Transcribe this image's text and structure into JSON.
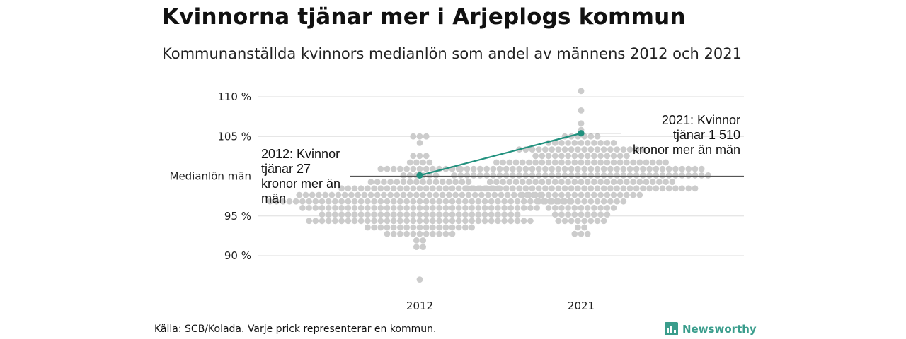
{
  "title": "Kvinnorna tjänar mer i Arjeplogs kommun",
  "subtitle": "Kommunanställda kvinnors medianlön som andel av männens 2012 och 2021",
  "source": "Källa: SCB/Kolada. Varje prick representerar en kommun.",
  "brand": {
    "name": "Newsworthy",
    "icon": "newsworthy-logo-icon",
    "color": "#3a9d8c"
  },
  "colors": {
    "dots": "#cccccc",
    "highlight": "#21917e",
    "grid": "#dddddd",
    "reference": "#555555"
  },
  "chart_data": {
    "type": "scatter",
    "subtype": "beeswarm",
    "categories": [
      "2012",
      "2021"
    ],
    "y_unit": "%",
    "ylim": [
      86,
      112
    ],
    "yticks": [
      {
        "value": 110,
        "label": "110 %"
      },
      {
        "value": 105,
        "label": "105 %"
      },
      {
        "value": 100,
        "label": "Medianlön män"
      },
      {
        "value": 95,
        "label": "95 %"
      },
      {
        "value": 90,
        "label": "90 %"
      }
    ],
    "reference_line": {
      "value": 100,
      "label": "Medianlön män"
    },
    "grid": true,
    "highlight_series": {
      "values": [
        100.1,
        105.4
      ],
      "annotations": [
        "2012: Kvinnor tjänar 27 kronor mer än män",
        "2021: Kvinnor tjänar 1 510 kronor mer än män"
      ]
    },
    "swarm": [
      {
        "category": "2012",
        "min": 86.7,
        "max": 105.2,
        "median": 96.5,
        "count": 290
      },
      {
        "category": "2021",
        "min": 92.6,
        "max": 111.0,
        "median": 100.2,
        "count": 290
      }
    ]
  }
}
